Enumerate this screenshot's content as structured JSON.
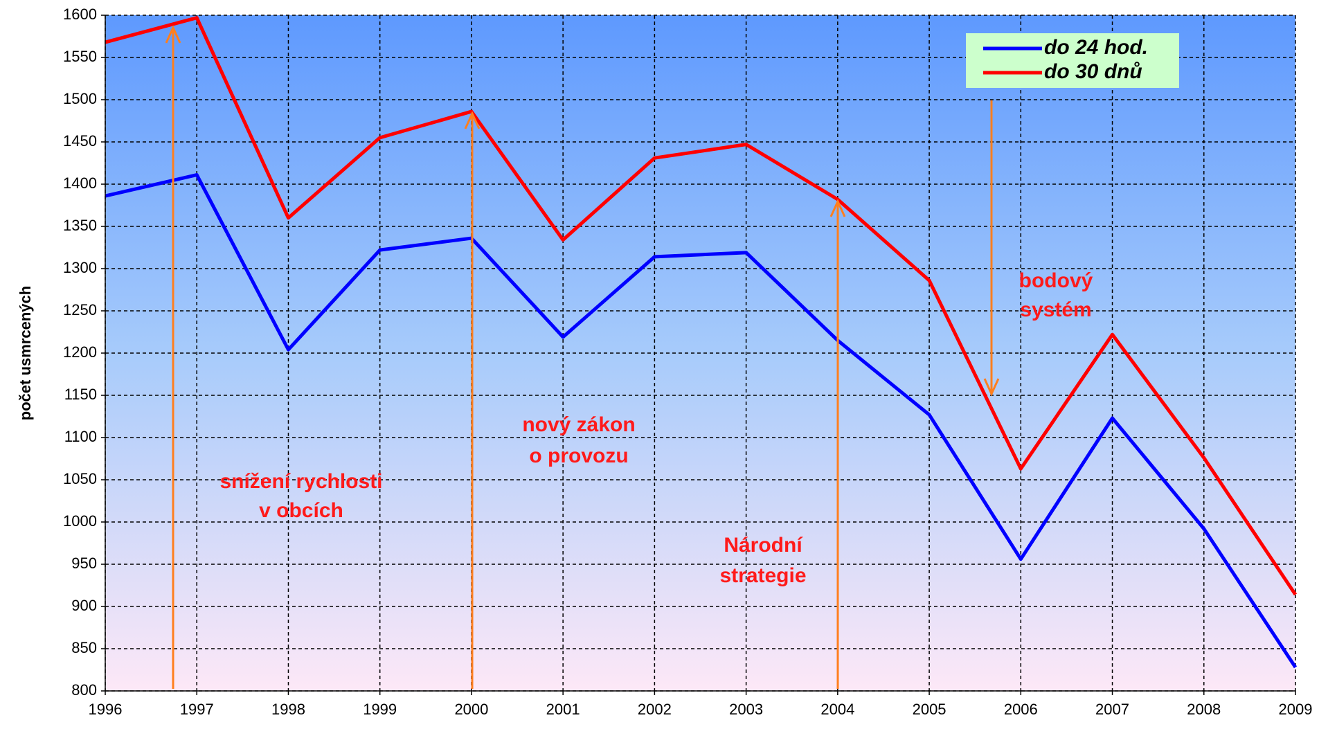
{
  "chart_data": {
    "type": "line",
    "y_label": "počet usmrcených",
    "x": [
      1996,
      1997,
      1998,
      1999,
      2000,
      2001,
      2002,
      2003,
      2004,
      2005,
      2006,
      2007,
      2008,
      2009
    ],
    "xlim": [
      1996,
      2009
    ],
    "xticks": [
      1996,
      1997,
      1998,
      1999,
      2000,
      2001,
      2002,
      2003,
      2004,
      2005,
      2006,
      2007,
      2008,
      2009
    ],
    "ylim": [
      800,
      1600
    ],
    "yticks": [
      800,
      850,
      900,
      950,
      1000,
      1050,
      1100,
      1150,
      1200,
      1250,
      1300,
      1350,
      1400,
      1450,
      1500,
      1550,
      1600
    ],
    "grid": true,
    "legend": "top-right",
    "series": [
      {
        "name": "do 24 hod.",
        "color": "#0000ff",
        "values": [
          1386,
          1411,
          1204,
          1322,
          1336,
          1219,
          1314,
          1319,
          1215,
          1127,
          956,
          1123,
          992,
          828
        ]
      },
      {
        "name": "do 30 dnů",
        "color": "#ff0000",
        "values": [
          1568,
          1597,
          1360,
          1455,
          1486,
          1334,
          1431,
          1447,
          1382,
          1286,
          1063,
          1222,
          1076,
          914
        ]
      }
    ],
    "annotations": [
      [
        "snížení rychlosti",
        "v obcích"
      ],
      [
        "nový zákon",
        "o provozu"
      ],
      [
        "Národní",
        "strategie"
      ],
      [
        "bodový",
        "systém"
      ]
    ]
  }
}
